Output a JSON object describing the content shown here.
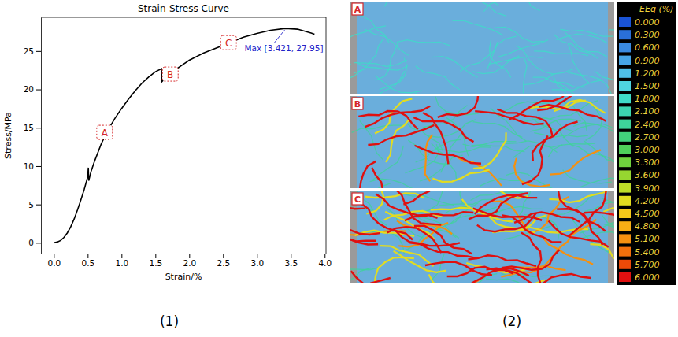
{
  "chart_data": [
    {
      "type": "line",
      "title": "Strain-Stress Curve",
      "x_label": "Strain/%",
      "y_label": "Stress/MPa",
      "panel_label": "(1)",
      "x": [
        0,
        0.05,
        0.1,
        0.15,
        0.2,
        0.25,
        0.3,
        0.35,
        0.4,
        0.45,
        0.5,
        0.51,
        0.515,
        0.55,
        0.6,
        0.7,
        0.8,
        0.9,
        1.0,
        1.1,
        1.2,
        1.3,
        1.4,
        1.5,
        1.59,
        1.595,
        1.65,
        1.7,
        1.8,
        1.9,
        2.0,
        2.2,
        2.4,
        2.6,
        2.8,
        3.0,
        3.2,
        3.421,
        3.6,
        3.7,
        3.8,
        3.85
      ],
      "values": [
        0,
        0.1,
        0.3,
        0.7,
        1.3,
        2.1,
        3.1,
        4.3,
        5.6,
        7.0,
        8.6,
        9.8,
        8.1,
        9.3,
        10.6,
        12.9,
        14.7,
        16.2,
        17.5,
        18.7,
        19.8,
        20.8,
        21.6,
        22.3,
        22.7,
        21.0,
        21.5,
        21.9,
        22.6,
        23.2,
        23.8,
        24.7,
        25.4,
        26.1,
        26.8,
        27.3,
        27.7,
        27.95,
        27.85,
        27.6,
        27.35,
        27.2
      ],
      "color": "#000000",
      "xlim": [
        -0.19,
        4.02
      ],
      "ylim": [
        -1.4,
        29.4
      ],
      "xticks": [
        {
          "value": 0,
          "label": "0.0"
        },
        {
          "value": 0.5,
          "label": "0.5"
        },
        {
          "value": 1,
          "label": "1.0"
        },
        {
          "value": 1.5,
          "label": "1.5"
        },
        {
          "value": 2,
          "label": "2.0"
        },
        {
          "value": 2.5,
          "label": "2.5"
        },
        {
          "value": 3,
          "label": "3.0"
        },
        {
          "value": 3.5,
          "label": "3.5"
        },
        {
          "value": 4,
          "label": "4.0"
        }
      ],
      "yticks": [
        0,
        5,
        10,
        15,
        20,
        25
      ],
      "annotations": [
        {
          "text": "A",
          "x": 0.75,
          "y": 14.4,
          "color": "#d62728",
          "marker": "box"
        },
        {
          "text": "B",
          "x": 1.72,
          "y": 22.0,
          "color": "#d62728",
          "marker": "box"
        },
        {
          "text": "C",
          "x": 2.58,
          "y": 26.1,
          "color": "#d62728",
          "marker": "box"
        },
        {
          "text": "Max [3.421, 27.95]",
          "x": 3.421,
          "y": 27.95,
          "color": "#2323c8",
          "marker": "arrow"
        }
      ]
    },
    {
      "type": "image",
      "panel_label": "(2)",
      "panels": [
        "A",
        "B",
        "C"
      ],
      "colorbar": {
        "title": "EEq (%)",
        "range": [
          0,
          6
        ],
        "ticks": [
          {
            "value": 0,
            "label": "0.000"
          },
          {
            "value": 0.3,
            "label": "0.300"
          },
          {
            "value": 0.6,
            "label": "0.600"
          },
          {
            "value": 0.9,
            "label": "0.900"
          },
          {
            "value": 1.2,
            "label": "1.200"
          },
          {
            "value": 1.5,
            "label": "1.500"
          },
          {
            "value": 1.8,
            "label": "1.800"
          },
          {
            "value": 2.1,
            "label": "2.100"
          },
          {
            "value": 2.4,
            "label": "2.400"
          },
          {
            "value": 2.7,
            "label": "2.700"
          },
          {
            "value": 3,
            "label": "3.000"
          },
          {
            "value": 3.3,
            "label": "3.300"
          },
          {
            "value": 3.6,
            "label": "3.600"
          },
          {
            "value": 3.9,
            "label": "3.900"
          },
          {
            "value": 4.2,
            "label": "4.200"
          },
          {
            "value": 4.5,
            "label": "4.500"
          },
          {
            "value": 4.8,
            "label": "4.800"
          },
          {
            "value": 5.1,
            "label": "5.100"
          },
          {
            "value": 5.4,
            "label": "5.400"
          },
          {
            "value": 5.7,
            "label": "5.700"
          },
          {
            "value": 6,
            "label": "6.000"
          }
        ],
        "colors": [
          "#1a53d6",
          "#2a6fd8",
          "#3a8ae0",
          "#47a5e6",
          "#4fbfe8",
          "#4fd4e0",
          "#3fdcc8",
          "#3cd6b0",
          "#3ed39a",
          "#42d17c",
          "#4fd05a",
          "#70d23e",
          "#96d630",
          "#bedb28",
          "#e2dc20",
          "#f5c81a",
          "#f7ae15",
          "#f59010",
          "#f2700c",
          "#ec4a08",
          "#e01010"
        ]
      }
    }
  ]
}
